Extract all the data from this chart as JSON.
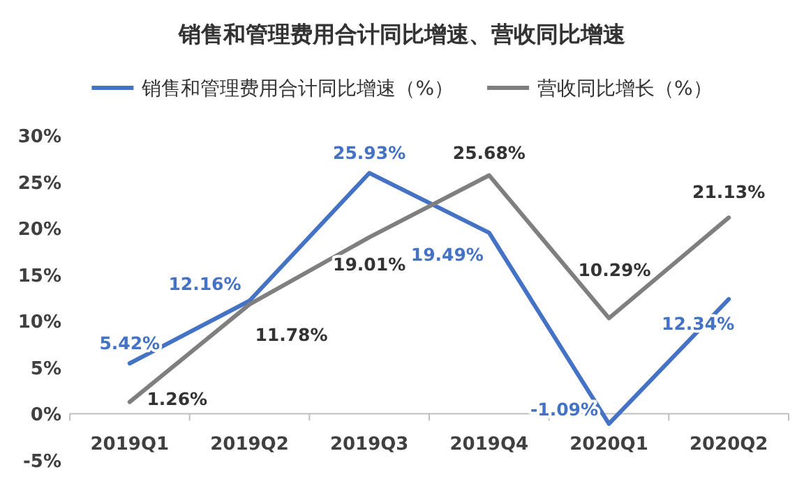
{
  "chart_data": {
    "type": "line",
    "title": "销售和管理费用合计同比增速、营收同比增速",
    "categories": [
      "2019Q1",
      "2019Q2",
      "2019Q3",
      "2019Q4",
      "2020Q1",
      "2020Q2"
    ],
    "series": [
      {
        "name": "销售和管理费用合计同比增速（%）",
        "color": "#4472c4",
        "values": [
          5.42,
          12.16,
          25.93,
          19.49,
          -1.09,
          12.34
        ],
        "value_labels": [
          "5.42%",
          "12.16%",
          "25.93%",
          "19.49%",
          "-1.09%",
          "12.34%"
        ]
      },
      {
        "name": "营收同比增长（%）",
        "color": "#7f7f7f",
        "values": [
          1.26,
          11.78,
          19.01,
          25.68,
          10.29,
          21.13
        ],
        "value_labels": [
          "1.26%",
          "11.78%",
          "19.01%",
          "25.68%",
          "10.29%",
          "21.13%"
        ]
      }
    ],
    "ylim": [
      -5,
      30
    ],
    "yticks": [
      {
        "value": -5,
        "label": "-5%"
      },
      {
        "value": 0,
        "label": "0%"
      },
      {
        "value": 5,
        "label": "5%"
      },
      {
        "value": 10,
        "label": "10%"
      },
      {
        "value": 15,
        "label": "15%"
      },
      {
        "value": 20,
        "label": "20%"
      },
      {
        "value": 25,
        "label": "25%"
      },
      {
        "value": 30,
        "label": "30%"
      }
    ],
    "legend": "top",
    "grid": false,
    "marker": "none",
    "line_style": "solid"
  }
}
